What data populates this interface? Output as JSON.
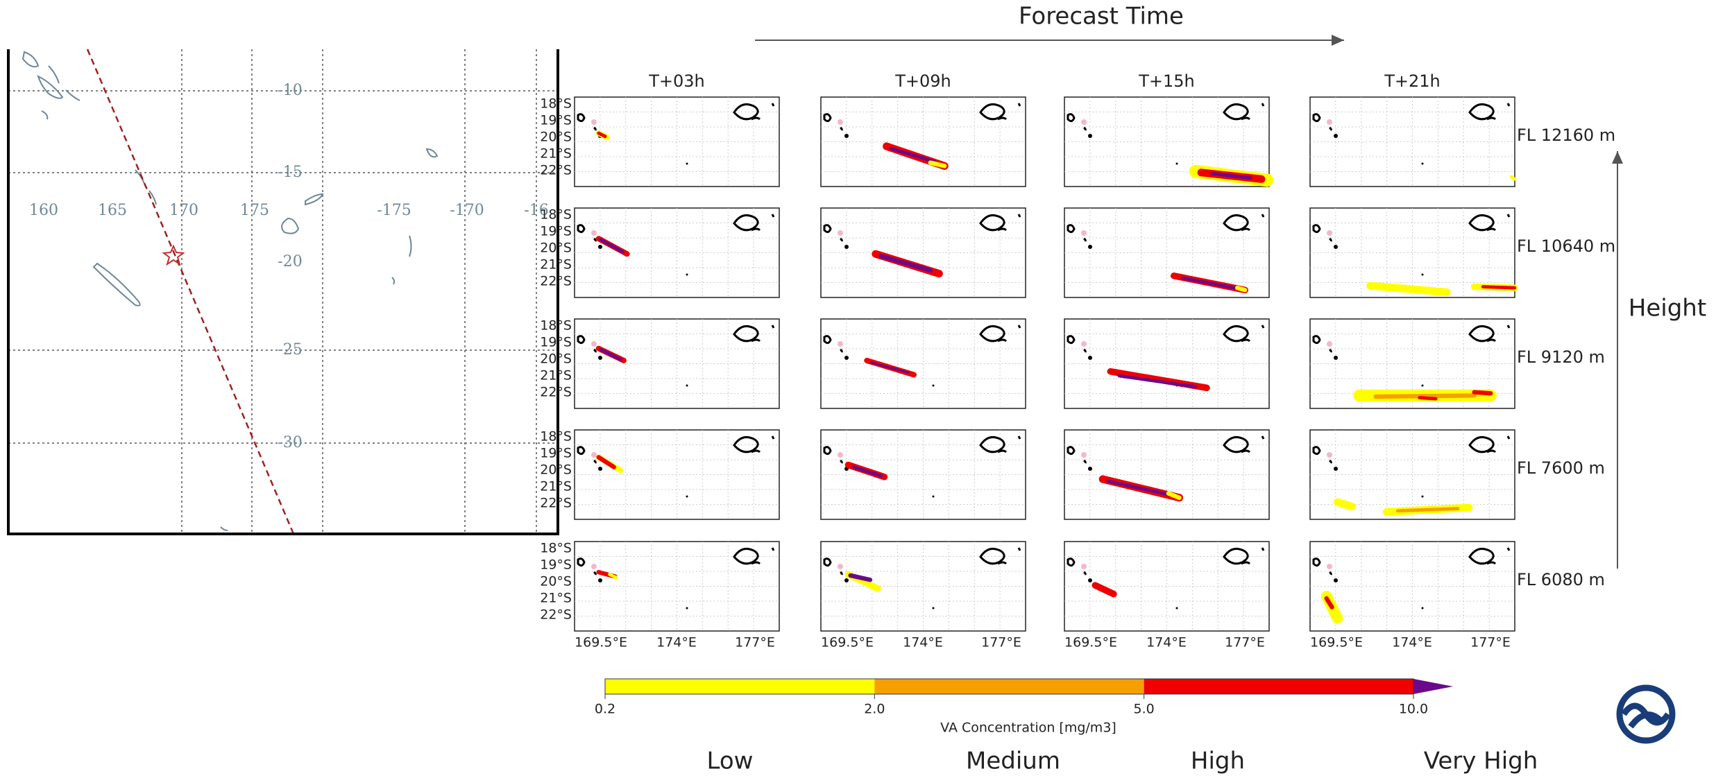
{
  "overview_map": {
    "lon_labels": [
      "160",
      "165",
      "170",
      "175",
      "-175",
      "-170",
      "-16"
    ],
    "lat_labels": [
      "-10",
      "-15",
      "-20",
      "-25",
      "-30"
    ]
  },
  "header": {
    "title": "Forecast Time",
    "columns": [
      "T+03h",
      "T+09h",
      "T+15h",
      "T+21h"
    ]
  },
  "rows": [
    "FL 12160 m",
    "FL 10640 m",
    "FL 9120 m",
    "FL 7600 m",
    "FL 6080 m"
  ],
  "side_label": "Height",
  "panel_axes": {
    "lat_labels": [
      "18°S",
      "19°S",
      "20°S",
      "21°S",
      "22°S"
    ],
    "lon_labels": [
      "169.5°E",
      "174°E",
      "177°E"
    ]
  },
  "colorbar": {
    "label": "VA Concentration [mg/m3]",
    "ticks": [
      0.2,
      {
        "value": 2,
        "label": "2.0"
      },
      {
        "value": 5,
        "label": "5.0"
      },
      {
        "value": 10,
        "label": "10.0"
      }
    ],
    "colors": [
      "#ffff00",
      "#f5a000",
      "#ee0000",
      "#6a0a8a"
    ]
  },
  "levels": [
    "Low",
    "Medium",
    "High",
    "Very High"
  ]
}
